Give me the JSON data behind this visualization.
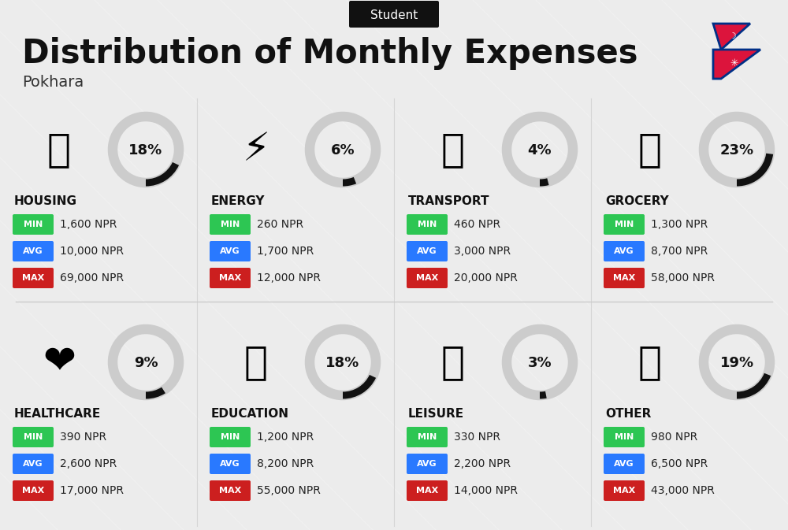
{
  "title": "Distribution of Monthly Expenses",
  "subtitle": "Student",
  "location": "Pokhara",
  "bg_color": "#f2f2f2",
  "title_color": "#111111",
  "categories": [
    {
      "name": "HOUSING",
      "pct": 18,
      "min": "1,600 NPR",
      "avg": "10,000 NPR",
      "max": "69,000 NPR",
      "row": 0,
      "col": 0
    },
    {
      "name": "ENERGY",
      "pct": 6,
      "min": "260 NPR",
      "avg": "1,700 NPR",
      "max": "12,000 NPR",
      "row": 0,
      "col": 1
    },
    {
      "name": "TRANSPORT",
      "pct": 4,
      "min": "460 NPR",
      "avg": "3,000 NPR",
      "max": "20,000 NPR",
      "row": 0,
      "col": 2
    },
    {
      "name": "GROCERY",
      "pct": 23,
      "min": "1,300 NPR",
      "avg": "8,700 NPR",
      "max": "58,000 NPR",
      "row": 0,
      "col": 3
    },
    {
      "name": "HEALTHCARE",
      "pct": 9,
      "min": "390 NPR",
      "avg": "2,600 NPR",
      "max": "17,000 NPR",
      "row": 1,
      "col": 0
    },
    {
      "name": "EDUCATION",
      "pct": 18,
      "min": "1,200 NPR",
      "avg": "8,200 NPR",
      "max": "55,000 NPR",
      "row": 1,
      "col": 1
    },
    {
      "name": "LEISURE",
      "pct": 3,
      "min": "330 NPR",
      "avg": "2,200 NPR",
      "max": "14,000 NPR",
      "row": 1,
      "col": 2
    },
    {
      "name": "OTHER",
      "pct": 19,
      "min": "980 NPR",
      "avg": "6,500 NPR",
      "max": "43,000 NPR",
      "row": 1,
      "col": 3
    }
  ],
  "min_color": "#2dc653",
  "avg_color": "#2979ff",
  "max_color": "#cc1f1f",
  "donut_bg": "#cccccc",
  "donut_fg": "#111111",
  "stripe_color": "#e8e8e8",
  "nepal_red": "#dc143c",
  "nepal_blue": "#003087"
}
